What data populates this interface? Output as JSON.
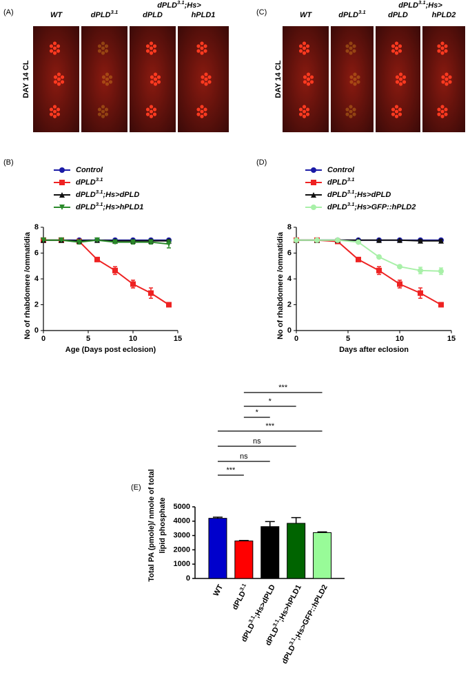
{
  "image_panels": [
    {
      "label": "(A)",
      "side_label": "DAY 14 CL",
      "group_label": "dPLD3.1;Hs>",
      "columns": [
        "WT",
        "dPLD3.1",
        "dPLD",
        "hPLD1"
      ]
    },
    {
      "label": "(C)",
      "side_label": "DAY 14 CL",
      "group_label": "dPLD3.1;Hs>",
      "columns": [
        "WT",
        "dPLD3.1",
        "dPLD",
        "hPLD2"
      ]
    }
  ],
  "chart_data": [
    {
      "type": "line",
      "panel_label": "(B)",
      "ylabel": "No of rhabdomere /ommatidia",
      "xlabel": "Age (Days post eclosion)",
      "x": [
        0,
        2,
        4,
        6,
        8,
        10,
        12,
        14
      ],
      "xlim": [
        0,
        15
      ],
      "xticks": [
        0,
        5,
        10,
        15
      ],
      "ylim": [
        0,
        8
      ],
      "yticks": [
        0,
        2,
        4,
        6,
        8
      ],
      "series": [
        {
          "name": "Control",
          "color": "#1a1aa6",
          "marker": "circle",
          "values": [
            7,
            7,
            7,
            7,
            7,
            7,
            7,
            7
          ],
          "errors": [
            0,
            0,
            0,
            0,
            0,
            0,
            0,
            0
          ]
        },
        {
          "name": "dPLD3.1",
          "color": "#ee2222",
          "marker": "square",
          "values": [
            7,
            7,
            6.9,
            5.5,
            4.65,
            3.6,
            2.9,
            2.0
          ],
          "errors": [
            0,
            0,
            0.1,
            0.15,
            0.3,
            0.3,
            0.4,
            0.15
          ]
        },
        {
          "name": "dPLD3.1;Hs>dPLD",
          "color": "#111111",
          "marker": "triangle-up",
          "values": [
            7,
            7,
            6.95,
            7,
            6.95,
            6.95,
            6.95,
            6.95
          ],
          "errors": [
            0,
            0,
            0.05,
            0.05,
            0.05,
            0.05,
            0.1,
            0.1
          ]
        },
        {
          "name": "dPLD3.1;Hs>hPLD1",
          "color": "#2a8a2a",
          "marker": "triangle-down",
          "values": [
            7,
            7,
            6.85,
            7,
            6.85,
            6.85,
            6.85,
            6.7
          ],
          "errors": [
            0,
            0,
            0.15,
            0.05,
            0.1,
            0.15,
            0.15,
            0.3
          ]
        }
      ]
    },
    {
      "type": "line",
      "panel_label": "(D)",
      "ylabel": "No of rhabdomere /ommatidia",
      "xlabel": "Days after eclosion",
      "x": [
        0,
        2,
        4,
        6,
        8,
        10,
        12,
        14
      ],
      "xlim": [
        0,
        15
      ],
      "xticks": [
        0,
        5,
        10,
        15
      ],
      "ylim": [
        0,
        8
      ],
      "yticks": [
        0,
        2,
        4,
        6,
        8
      ],
      "series": [
        {
          "name": "Control",
          "color": "#1a1aa6",
          "marker": "circle",
          "values": [
            7,
            7,
            7,
            7,
            7,
            7,
            7,
            7
          ],
          "errors": [
            0,
            0,
            0,
            0,
            0,
            0,
            0,
            0
          ]
        },
        {
          "name": "dPLD3.1",
          "color": "#ee2222",
          "marker": "square",
          "values": [
            7,
            7,
            6.9,
            5.5,
            4.65,
            3.6,
            2.9,
            2.0
          ],
          "errors": [
            0,
            0,
            0.1,
            0.15,
            0.3,
            0.3,
            0.4,
            0.15
          ]
        },
        {
          "name": "dPLD3.1;Hs>dPLD",
          "color": "#111111",
          "marker": "triangle-up",
          "values": [
            7,
            7,
            7,
            7,
            7,
            7,
            6.95,
            6.95
          ],
          "errors": [
            0,
            0,
            0,
            0,
            0,
            0,
            0.1,
            0.1
          ]
        },
        {
          "name": "dPLD3.1;Hs>GFP::hPLD2",
          "color": "#a8f0a8",
          "marker": "circle",
          "values": [
            7,
            7,
            7,
            6.85,
            5.7,
            4.95,
            4.65,
            4.6
          ],
          "errors": [
            0,
            0,
            0,
            0.1,
            0.1,
            0.1,
            0.25,
            0.25
          ]
        }
      ]
    },
    {
      "type": "bar",
      "panel_label": "(E)",
      "ylabel": [
        "Total PA (pmole)/ nmole of total",
        "lipid phosphate"
      ],
      "categories": [
        "WT",
        "dPLD3.1",
        "dPLD3.1;Hs>dPLD",
        "dPLD3.1;Hs>hPLD1",
        "dPLD3.1;Hs>GFP::hPLD2"
      ],
      "values": [
        4200,
        2620,
        3620,
        3850,
        3200
      ],
      "errors": [
        80,
        30,
        350,
        400,
        50
      ],
      "colors": [
        "#0000cc",
        "#ff0000",
        "#000000",
        "#006400",
        "#98fb98"
      ],
      "ylim": [
        0,
        5000
      ],
      "yticks": [
        0,
        1000,
        2000,
        3000,
        4000,
        5000
      ],
      "comparisons": [
        "***",
        "*",
        "*",
        "***",
        "ns",
        "ns",
        "***"
      ]
    }
  ]
}
